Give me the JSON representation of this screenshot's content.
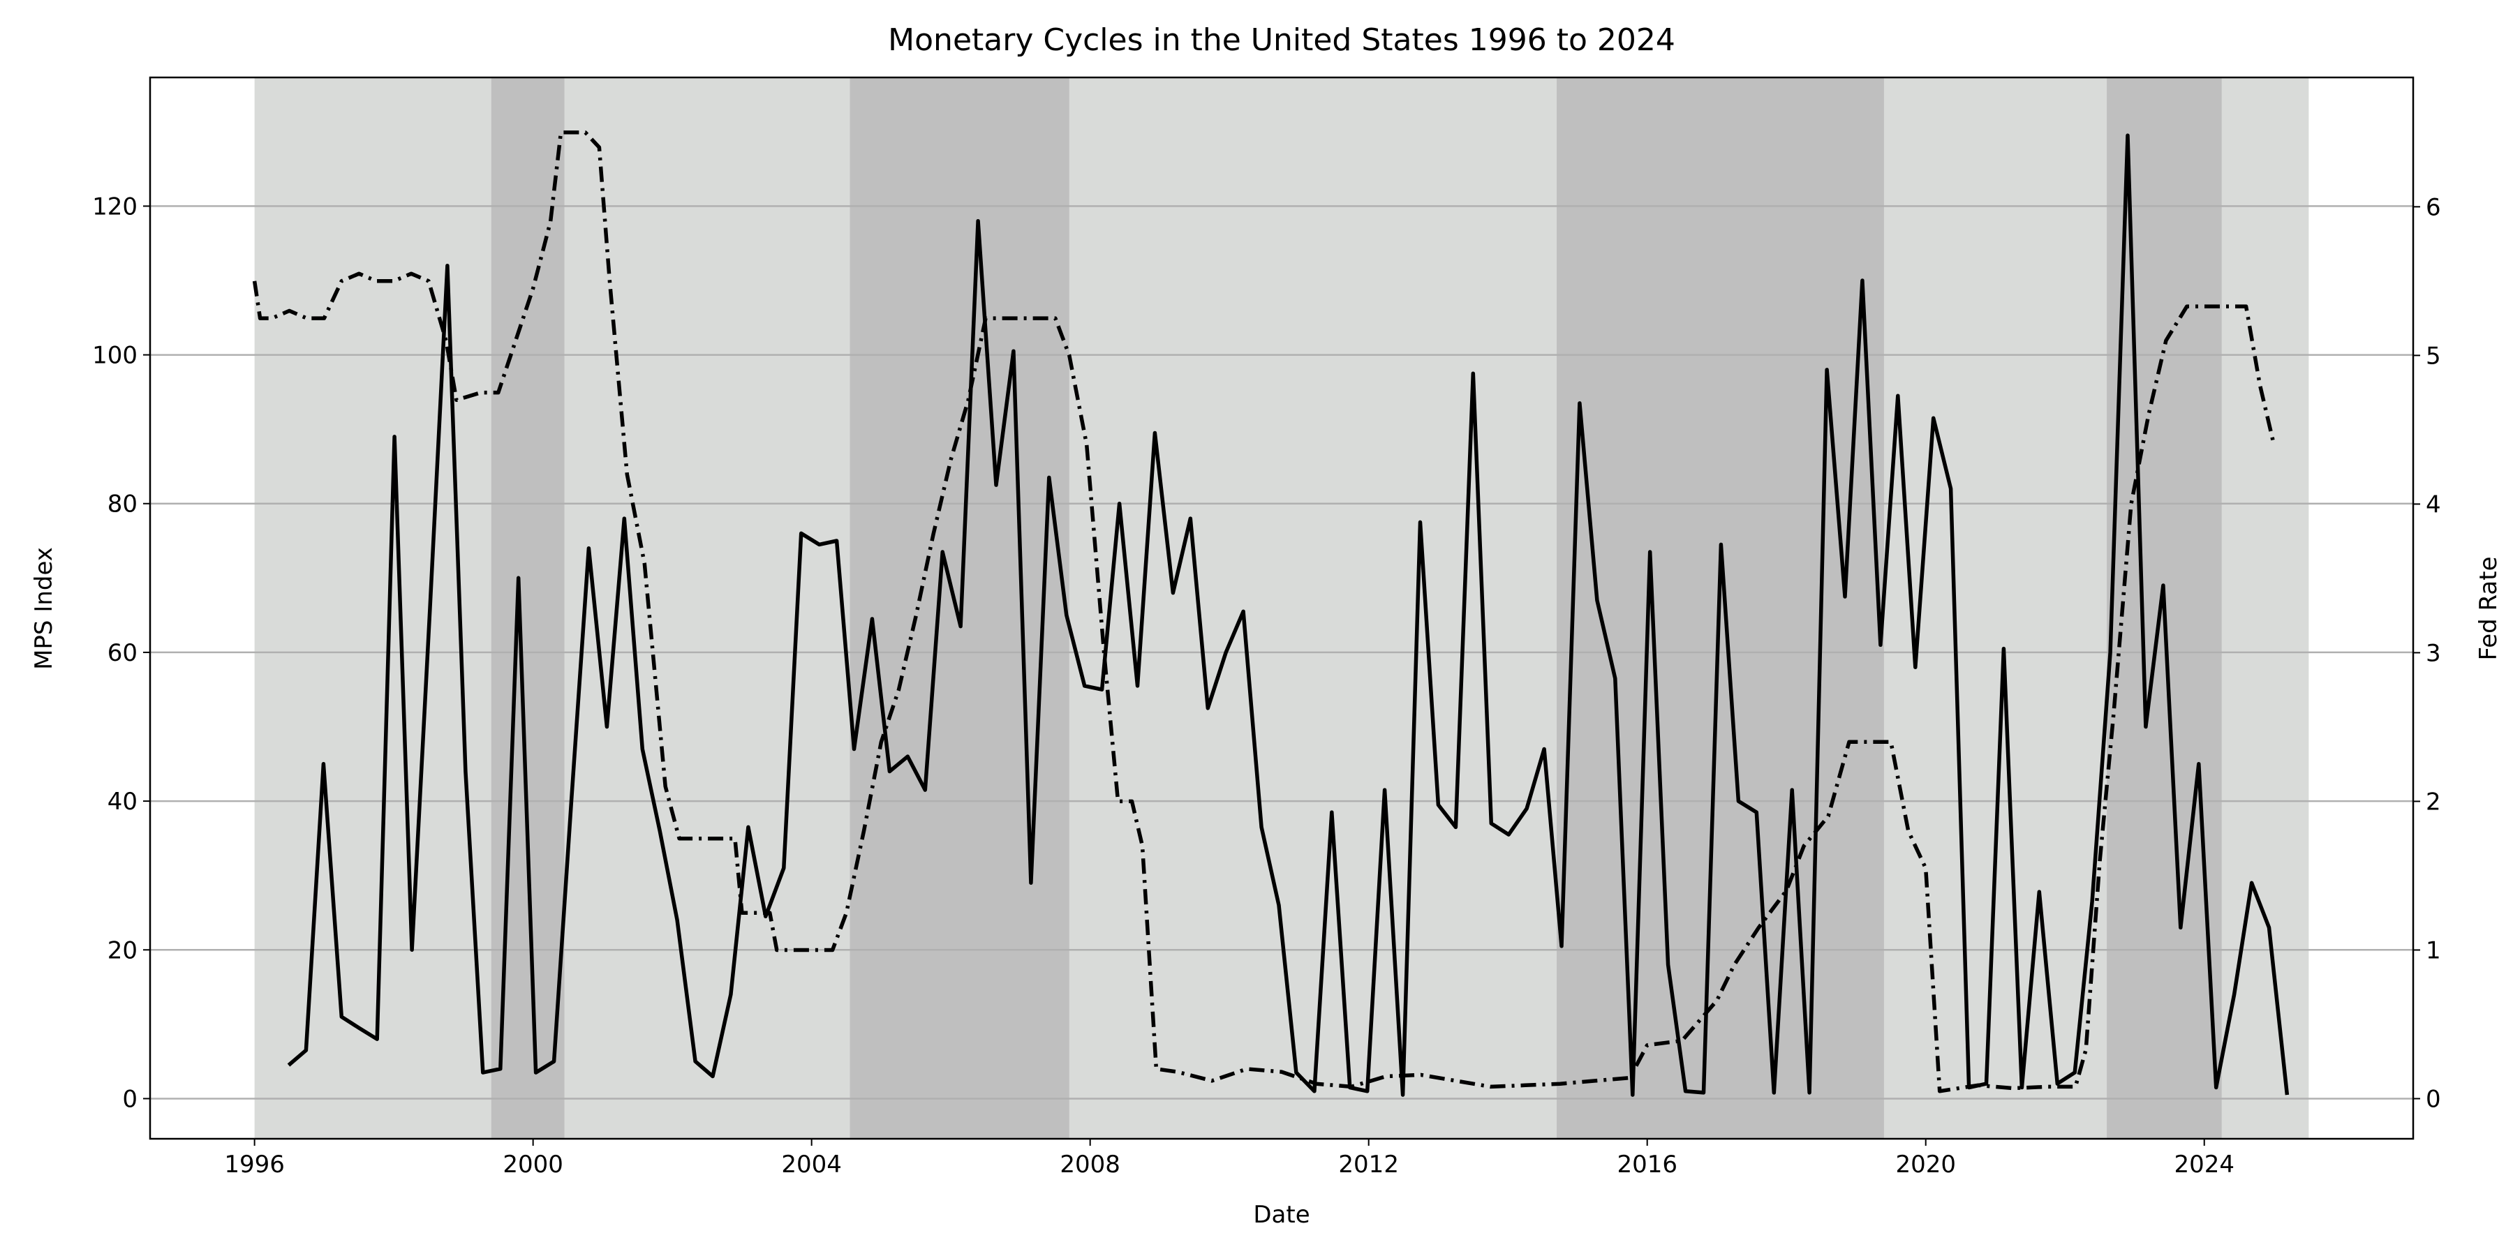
{
  "chart_data": {
    "type": "line",
    "title": "Monetary Cycles in the United States 1996 to 2024",
    "x_label": "Date",
    "y_label": "MPS Index",
    "y2_label": "Fed Rate",
    "xlim": [
      1994.5,
      2027.0
    ],
    "xticks": [
      1996,
      2000,
      2004,
      2008,
      2012,
      2016,
      2020,
      2024
    ],
    "ylim": [
      -5.4,
      137.3
    ],
    "yticks": [
      0,
      20,
      40,
      60,
      80,
      100,
      120
    ],
    "y2lim": [
      -0.27,
      6.87
    ],
    "y2ticks": [
      0,
      1,
      2,
      3,
      4,
      5,
      6
    ],
    "grid": true,
    "shaded_regions": [
      {
        "start": 1996.0,
        "end": 2025.5,
        "color": "#d9dbd9"
      },
      {
        "start": 1999.4,
        "end": 2000.45,
        "color": "#bfbfbf"
      },
      {
        "start": 2004.55,
        "end": 2007.7,
        "color": "#bfbfbf"
      },
      {
        "start": 2014.7,
        "end": 2019.4,
        "color": "#bfbfbf"
      },
      {
        "start": 2022.6,
        "end": 2024.25,
        "color": "#bfbfbf"
      }
    ],
    "series": [
      {
        "name": "MPS Index",
        "color": "#000000",
        "linestyle": "solid",
        "x": [
          1996.49,
          1996.74,
          1996.99,
          1997.25,
          1997.5,
          1997.76,
          1998.01,
          1998.26,
          1998.52,
          1998.77,
          1999.03,
          1999.28,
          1999.53,
          1999.79,
          2000.04,
          2000.3,
          2000.55,
          2000.8,
          2001.06,
          2001.31,
          2001.57,
          2001.82,
          2002.07,
          2002.33,
          2002.58,
          2002.84,
          2003.09,
          2003.34,
          2003.6,
          2003.85,
          2004.11,
          2004.36,
          2004.61,
          2004.87,
          2005.12,
          2005.38,
          2005.63,
          2005.88,
          2006.14,
          2006.39,
          2006.65,
          2006.9,
          2007.15,
          2007.41,
          2007.66,
          2007.92,
          2008.17,
          2008.42,
          2008.68,
          2008.93,
          2009.19,
          2009.44,
          2009.69,
          2009.95,
          2010.2,
          2010.46,
          2010.71,
          2010.96,
          2011.22,
          2011.47,
          2011.73,
          2011.98,
          2012.23,
          2012.49,
          2012.74,
          2013.0,
          2013.25,
          2013.5,
          2013.76,
          2014.01,
          2014.27,
          2014.52,
          2014.77,
          2015.03,
          2015.28,
          2015.54,
          2015.79,
          2016.04,
          2016.3,
          2016.55,
          2016.81,
          2017.06,
          2017.31,
          2017.57,
          2017.82,
          2018.08,
          2018.33,
          2018.58,
          2018.84,
          2019.09,
          2019.35,
          2019.6,
          2019.85,
          2020.11,
          2020.36,
          2020.62,
          2020.87,
          2021.12,
          2021.38,
          2021.63,
          2021.89,
          2022.14,
          2022.39,
          2022.65,
          2022.9,
          2023.16,
          2023.41,
          2023.66,
          2023.92,
          2024.17,
          2024.43,
          2024.68,
          2024.93,
          2025.19
        ],
        "values": [
          4.5,
          6.5,
          45,
          11,
          9.5,
          8,
          89,
          20,
          66,
          112,
          44,
          3.5,
          4,
          70,
          3.5,
          5,
          40,
          74,
          50,
          78,
          47,
          36,
          24,
          5,
          3,
          14,
          36.5,
          24.5,
          31,
          76,
          74.5,
          75,
          47,
          64.5,
          44,
          46,
          41.5,
          73.5,
          63.5,
          118,
          82.5,
          100.5,
          29,
          83.5,
          65,
          55.5,
          55,
          80,
          55.5,
          89.5,
          68,
          78,
          52.5,
          60,
          65.5,
          36.5,
          26,
          3.5,
          1,
          38.5,
          1.5,
          1,
          41.5,
          0.5,
          77.5,
          39.5,
          36.5,
          97.5,
          37,
          35.5,
          39,
          47,
          20.5,
          93.5,
          67,
          56.5,
          0.5,
          73.5,
          18,
          1,
          0.8,
          74.5,
          40,
          38.5,
          0.8,
          41.5,
          0.8,
          98,
          67.5,
          110,
          61,
          94.5,
          58,
          91.5,
          82,
          1.5,
          2,
          60.5,
          1.5,
          27.8,
          2,
          3.5,
          26.5,
          60,
          129.5,
          50,
          69,
          23,
          45,
          1.5,
          14,
          29,
          23,
          0.5
        ]
      },
      {
        "name": "Fed Rate",
        "color": "#000000",
        "linestyle": "dashdot",
        "axis": "y2",
        "x": [
          1996.0,
          1996.08,
          1996.25,
          1996.5,
          1996.75,
          1997.0,
          1997.25,
          1997.5,
          1997.75,
          1998.0,
          1998.25,
          1998.5,
          1998.75,
          1998.9,
          1999.25,
          1999.5,
          1999.75,
          2000.0,
          2000.25,
          2000.4,
          2000.75,
          2000.95,
          2001.1,
          2001.35,
          2001.6,
          2001.9,
          2002.1,
          2002.5,
          2002.9,
          2003.0,
          2003.4,
          2003.5,
          2004.3,
          2004.5,
          2004.75,
          2005.0,
          2005.25,
          2005.5,
          2005.75,
          2006.0,
          2006.25,
          2006.5,
          2007.5,
          2007.7,
          2007.95,
          2008.2,
          2008.4,
          2008.6,
          2008.75,
          2008.95,
          2009.25,
          2009.75,
          2010.25,
          2010.75,
          2011.25,
          2011.75,
          2012.25,
          2012.75,
          2013.25,
          2013.75,
          2014.25,
          2014.75,
          2015.25,
          2015.75,
          2016.0,
          2016.5,
          2017.0,
          2017.25,
          2017.6,
          2018.0,
          2018.25,
          2018.6,
          2018.9,
          2019.5,
          2019.75,
          2020.0,
          2020.2,
          2020.75,
          2021.25,
          2021.75,
          2022.15,
          2022.3,
          2022.5,
          2022.7,
          2022.95,
          2023.2,
          2023.45,
          2023.75,
          2024.6,
          2024.8,
          2025.0
        ],
        "values": [
          5.5,
          5.25,
          5.25,
          5.3,
          5.25,
          5.25,
          5.5,
          5.55,
          5.5,
          5.5,
          5.55,
          5.5,
          5.1,
          4.7,
          4.75,
          4.75,
          5.1,
          5.45,
          5.9,
          6.5,
          6.5,
          6.4,
          5.5,
          4.2,
          3.6,
          2.1,
          1.75,
          1.75,
          1.75,
          1.25,
          1.25,
          1.0,
          1.0,
          1.25,
          1.8,
          2.4,
          2.75,
          3.25,
          3.8,
          4.3,
          4.7,
          5.25,
          5.25,
          5.0,
          4.4,
          3.0,
          2.0,
          2.0,
          1.7,
          0.2,
          0.18,
          0.12,
          0.2,
          0.18,
          0.1,
          0.08,
          0.15,
          0.16,
          0.12,
          0.08,
          0.09,
          0.1,
          0.12,
          0.14,
          0.36,
          0.39,
          0.66,
          0.9,
          1.15,
          1.4,
          1.7,
          1.9,
          2.4,
          2.4,
          1.8,
          1.55,
          0.05,
          0.09,
          0.07,
          0.08,
          0.08,
          0.33,
          1.6,
          2.6,
          4.0,
          4.6,
          5.1,
          5.33,
          5.33,
          4.8,
          4.4
        ]
      }
    ]
  }
}
